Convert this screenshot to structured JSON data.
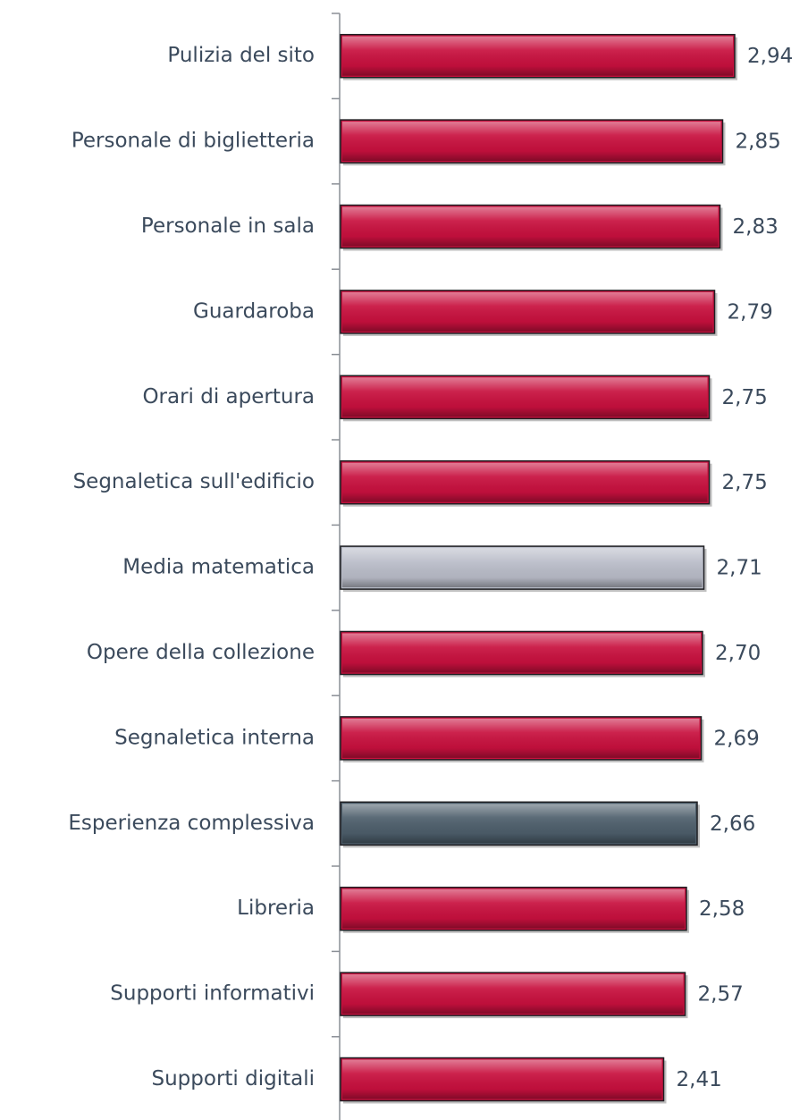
{
  "chart_data": {
    "type": "bar",
    "orientation": "horizontal",
    "categories": [
      "Pulizia del sito",
      "Personale di biglietteria",
      "Personale in sala",
      "Guardaroba",
      "Orari di apertura",
      "Segnaletica sull'edificio",
      "Media matematica",
      "Opere della collezione",
      "Segnaletica interna",
      "Esperienza complessiva",
      "Libreria",
      "Supporti informativi",
      "Supporti digitali"
    ],
    "values": [
      2.94,
      2.85,
      2.83,
      2.79,
      2.75,
      2.75,
      2.71,
      2.7,
      2.69,
      2.66,
      2.58,
      2.57,
      2.41
    ],
    "value_labels": [
      "2,94",
      "2,85",
      "2,83",
      "2,79",
      "2,75",
      "2,75",
      "2,71",
      "2,70",
      "2,69",
      "2,66",
      "2,58",
      "2,57",
      "2,41"
    ],
    "colors": [
      "#c8103e",
      "#c8103e",
      "#c8103e",
      "#c8103e",
      "#c8103e",
      "#c8103e",
      "#b9bcc8",
      "#c8103e",
      "#c8103e",
      "#4d5e6b",
      "#c8103e",
      "#c8103e",
      "#c8103e"
    ],
    "xlim": [
      0,
      3.4
    ]
  }
}
